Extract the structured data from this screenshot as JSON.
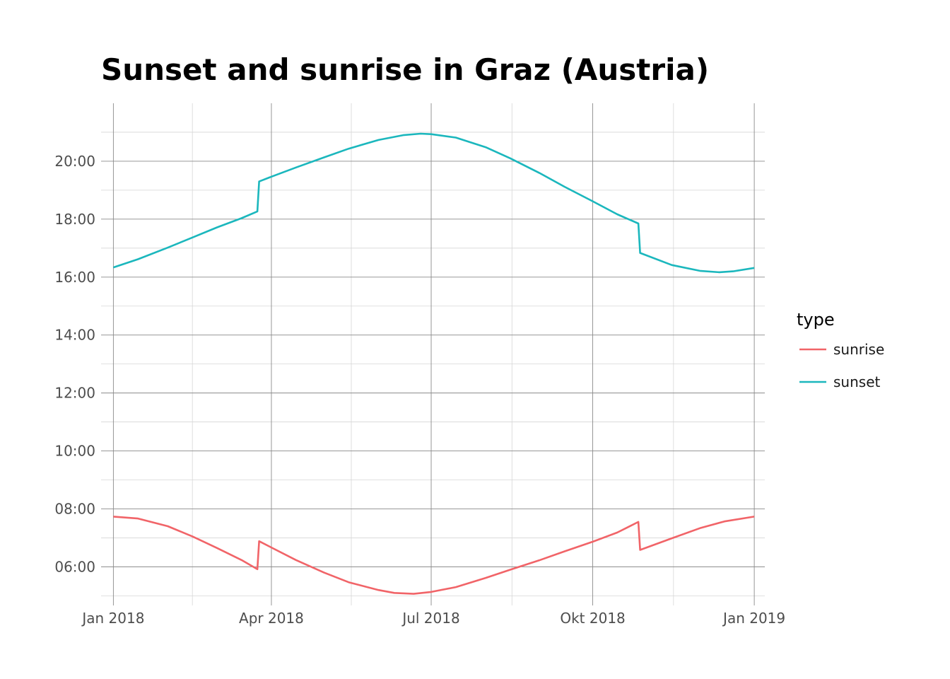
{
  "chart_data": {
    "type": "line",
    "title": "Sunset and sunrise in Graz (Austria)",
    "xlabel": "",
    "ylabel": "",
    "x_ticks": [
      "2018-01-01",
      "2018-04-01",
      "2018-07-01",
      "2018-10-01",
      "2019-01-01"
    ],
    "x_tick_labels": [
      "Jan 2018",
      "Apr 2018",
      "Jul 2018",
      "Okt 2018",
      "Jan 2019"
    ],
    "y_ticks": [
      6,
      8,
      10,
      12,
      14,
      16,
      18,
      20
    ],
    "y_tick_labels": [
      "06:00",
      "08:00",
      "10:00",
      "12:00",
      "14:00",
      "16:00",
      "18:00",
      "20:00"
    ],
    "ylim": [
      "04:40",
      "22:00"
    ],
    "xlim": [
      "2017-12-25",
      "2019-01-07"
    ],
    "grid": true,
    "legend": {
      "title": "type",
      "position": "right"
    },
    "series": [
      {
        "name": "sunrise",
        "color": "#f16468",
        "points": [
          [
            "2018-01-01",
            "07:44"
          ],
          [
            "2018-01-15",
            "07:40"
          ],
          [
            "2018-02-01",
            "07:24"
          ],
          [
            "2018-02-15",
            "07:03"
          ],
          [
            "2018-03-01",
            "06:39"
          ],
          [
            "2018-03-15",
            "06:14"
          ],
          [
            "2018-03-24",
            "05:55"
          ],
          [
            "2018-03-25",
            "06:53"
          ],
          [
            "2018-04-01",
            "06:40"
          ],
          [
            "2018-04-15",
            "06:14"
          ],
          [
            "2018-05-01",
            "05:48"
          ],
          [
            "2018-05-15",
            "05:28"
          ],
          [
            "2018-06-01",
            "05:12"
          ],
          [
            "2018-06-10",
            "05:06"
          ],
          [
            "2018-06-21",
            "05:04"
          ],
          [
            "2018-07-01",
            "05:08"
          ],
          [
            "2018-07-15",
            "05:18"
          ],
          [
            "2018-08-01",
            "05:37"
          ],
          [
            "2018-08-15",
            "05:54"
          ],
          [
            "2018-09-01",
            "06:14"
          ],
          [
            "2018-09-15",
            "06:32"
          ],
          [
            "2018-10-01",
            "06:52"
          ],
          [
            "2018-10-15",
            "07:11"
          ],
          [
            "2018-10-27",
            "07:33"
          ],
          [
            "2018-10-28",
            "06:35"
          ],
          [
            "2018-11-15",
            "06:59"
          ],
          [
            "2018-12-01",
            "07:20"
          ],
          [
            "2018-12-15",
            "07:34"
          ],
          [
            "2019-01-01",
            "07:44"
          ]
        ]
      },
      {
        "name": "sunset",
        "color": "#1bb7bd",
        "points": [
          [
            "2018-01-01",
            "16:20"
          ],
          [
            "2018-01-15",
            "16:37"
          ],
          [
            "2018-02-01",
            "17:01"
          ],
          [
            "2018-02-15",
            "17:22"
          ],
          [
            "2018-03-01",
            "17:43"
          ],
          [
            "2018-03-15",
            "18:02"
          ],
          [
            "2018-03-24",
            "18:16"
          ],
          [
            "2018-03-25",
            "19:18"
          ],
          [
            "2018-04-01",
            "19:28"
          ],
          [
            "2018-04-15",
            "19:47"
          ],
          [
            "2018-05-01",
            "20:08"
          ],
          [
            "2018-05-15",
            "20:26"
          ],
          [
            "2018-06-01",
            "20:44"
          ],
          [
            "2018-06-15",
            "20:54"
          ],
          [
            "2018-06-25",
            "20:57"
          ],
          [
            "2018-07-01",
            "20:56"
          ],
          [
            "2018-07-15",
            "20:49"
          ],
          [
            "2018-08-01",
            "20:29"
          ],
          [
            "2018-08-15",
            "20:06"
          ],
          [
            "2018-09-01",
            "19:35"
          ],
          [
            "2018-09-15",
            "19:07"
          ],
          [
            "2018-10-01",
            "18:37"
          ],
          [
            "2018-10-15",
            "18:10"
          ],
          [
            "2018-10-27",
            "17:51"
          ],
          [
            "2018-10-28",
            "16:50"
          ],
          [
            "2018-11-15",
            "16:25"
          ],
          [
            "2018-12-01",
            "16:13"
          ],
          [
            "2018-12-12",
            "16:10"
          ],
          [
            "2018-12-20",
            "16:12"
          ],
          [
            "2019-01-01",
            "16:19"
          ]
        ]
      }
    ]
  }
}
